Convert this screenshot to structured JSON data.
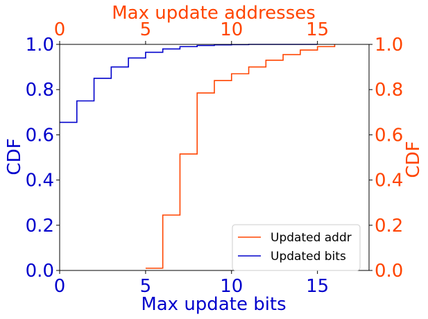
{
  "chart_data": {
    "type": "line",
    "step": true,
    "xlabel_bottom": "Max update bits",
    "xlabel_top": "Max update addresses",
    "ylabel_left": "CDF",
    "ylabel_right": "CDF",
    "xlim_bottom": [
      0,
      18
    ],
    "xlim_top": [
      0,
      18
    ],
    "ylim": [
      0,
      1
    ],
    "xticks_bottom": [
      "0",
      "5",
      "10",
      "15"
    ],
    "xticks_top": [
      "0",
      "5",
      "10",
      "15"
    ],
    "yticks_left": [
      "0.0",
      "0.2",
      "0.4",
      "0.6",
      "0.8",
      "1.0"
    ],
    "yticks_right": [
      "0.0",
      "0.2",
      "0.4",
      "0.6",
      "0.8",
      "1.0"
    ],
    "grid": false,
    "legend_position": "lower-right",
    "colors": {
      "bits": "#0000cc",
      "addr": "#ff4500"
    },
    "series": [
      {
        "name": "Updated addr",
        "axis": "top",
        "x": [
          5,
          6,
          7,
          8,
          9,
          10,
          11,
          12,
          13,
          14,
          15,
          16
        ],
        "y": [
          0.01,
          0.245,
          0.515,
          0.785,
          0.84,
          0.87,
          0.9,
          0.93,
          0.955,
          0.975,
          0.99,
          1.0
        ]
      },
      {
        "name": "Updated bits",
        "axis": "bottom",
        "x": [
          0,
          1,
          2,
          3,
          4,
          5,
          6,
          7,
          8,
          9,
          10,
          11,
          12,
          13,
          14,
          15
        ],
        "y": [
          0.655,
          0.75,
          0.85,
          0.9,
          0.94,
          0.965,
          0.98,
          0.99,
          0.995,
          0.998,
          0.999,
          1.0,
          1.0,
          1.0,
          1.0,
          1.0
        ]
      }
    ]
  }
}
